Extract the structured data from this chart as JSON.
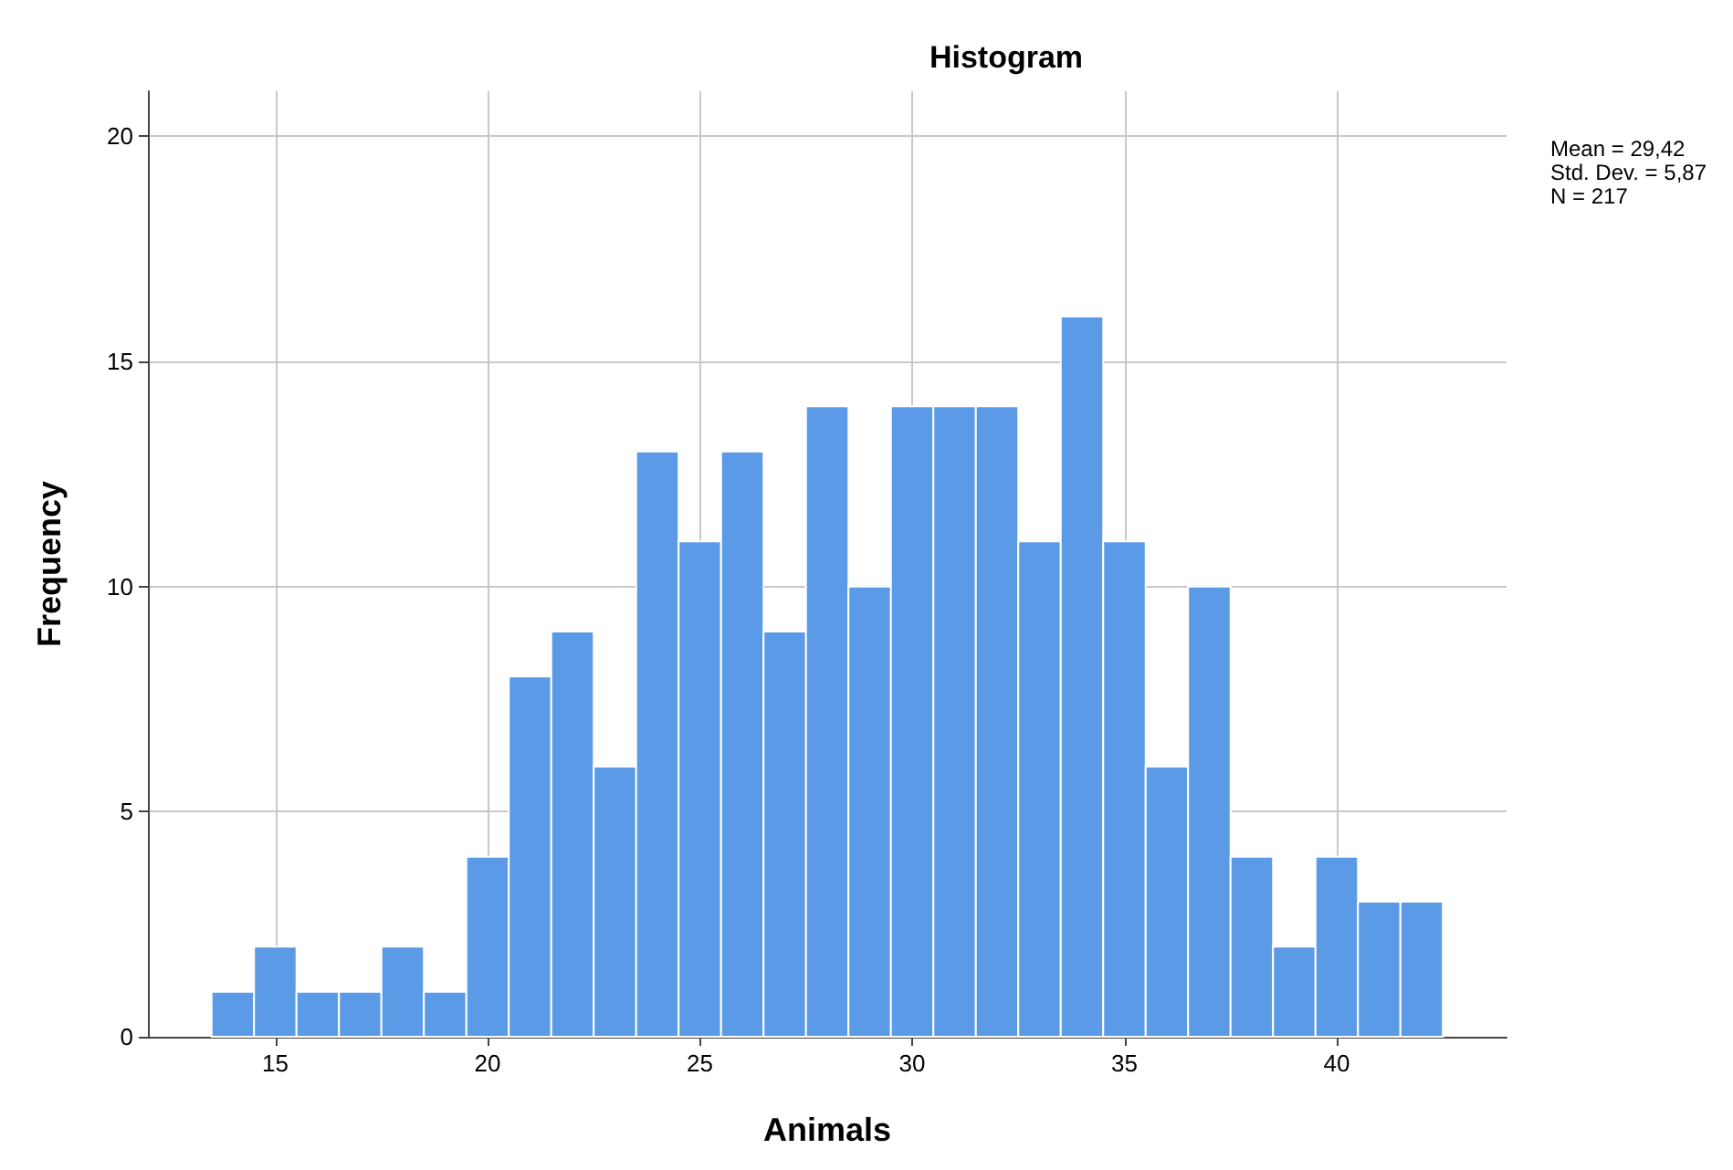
{
  "chart_data": {
    "type": "histogram",
    "title": "Histogram",
    "xlabel": "Animals",
    "ylabel": "Frequency",
    "bins": [
      13.5,
      14.5,
      15.5,
      16.5,
      17.5,
      18.5,
      19.5,
      20.5,
      21.5,
      22.5,
      23.5,
      24.5,
      25.5,
      26.5,
      27.5,
      28.5,
      29.5,
      30.5,
      31.5,
      32.5,
      33.5,
      34.5,
      35.5,
      36.5,
      37.5,
      38.5,
      39.5,
      40.5,
      41.5,
      42.5
    ],
    "values": [
      1,
      2,
      1,
      1,
      2,
      1,
      4,
      8,
      9,
      6,
      13,
      11,
      13,
      9,
      14,
      10,
      14,
      14,
      14,
      11,
      16,
      11,
      6,
      10,
      4,
      2,
      4,
      3,
      3
    ],
    "color": "#5a9ae6",
    "xlim": [
      12,
      44
    ],
    "xticks": [
      15,
      20,
      25,
      30,
      35,
      40
    ],
    "ylim": [
      0,
      21
    ],
    "yticks": [
      0,
      5,
      10,
      15,
      20
    ],
    "grid": true,
    "annotations": [
      "Mean = 29,42",
      "Std. Dev. = 5,87",
      "N = 217"
    ]
  }
}
